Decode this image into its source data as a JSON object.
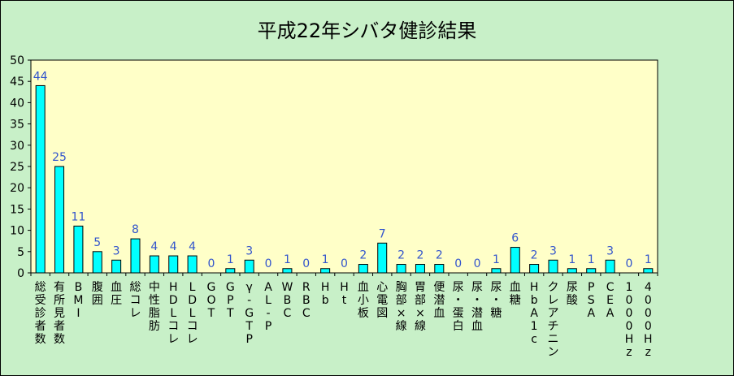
{
  "chart_data": {
    "type": "bar",
    "title": "平成22年シバタ健診結果",
    "xlabel": "",
    "ylabel": "",
    "ylim": [
      0,
      50
    ],
    "yticks": [
      0,
      5,
      10,
      15,
      20,
      25,
      30,
      35,
      40,
      45,
      50
    ],
    "grid": false,
    "legend": "none",
    "bar_color": "#00ffff",
    "label_color": "#3355cc",
    "plot_bg": "#ffffc8",
    "categories": [
      "総受診者数",
      "有所見者数",
      "BMI",
      "腹囲",
      "血圧",
      "総コレ",
      "中性脂肪",
      "HDLコレ",
      "LDLコレ",
      "GOT",
      "GPT",
      "γ-GTP",
      "AL-P",
      "WBC",
      "RBC",
      "Hb",
      "Ht",
      "血小板",
      "心電図",
      "胸部×線",
      "胃部×線",
      "便潜血",
      "尿・蛋白",
      "尿・潜血",
      "尿・糖",
      "血糖",
      "HbA1c",
      "クレアチニン",
      "尿酸",
      "PSA",
      "CEA",
      "1000Hz",
      "4000Hz"
    ],
    "values": [
      44,
      25,
      11,
      5,
      3,
      8,
      4,
      4,
      4,
      0,
      1,
      3,
      0,
      1,
      0,
      1,
      0,
      2,
      7,
      2,
      2,
      2,
      0,
      0,
      1,
      6,
      2,
      3,
      1,
      1,
      3,
      0,
      1
    ]
  }
}
